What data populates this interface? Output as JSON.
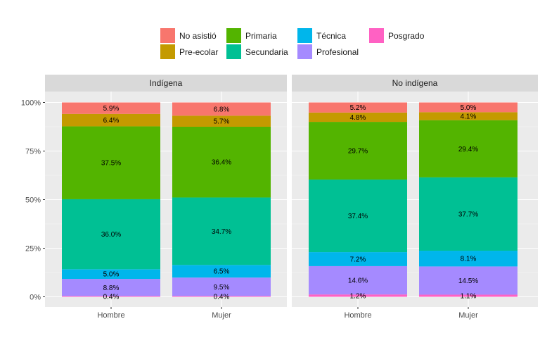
{
  "chart_data": {
    "type": "bar",
    "stacked": true,
    "y_tick_labels": [
      "0%",
      "25%",
      "50%",
      "75%",
      "100%"
    ],
    "ylim": [
      0,
      100
    ],
    "legend_placement": "top",
    "grid": true,
    "legend": [
      {
        "key": "posgrado",
        "label": "Posgrado",
        "color": "#ff61c3"
      },
      {
        "key": "profesional",
        "label": "Profesional",
        "color": "#a58aff"
      },
      {
        "key": "tecnica",
        "label": "Técnica",
        "color": "#00b6eb"
      },
      {
        "key": "secundaria",
        "label": "Secundaria",
        "color": "#00c094"
      },
      {
        "key": "primaria",
        "label": "Primaria",
        "color": "#53b400"
      },
      {
        "key": "preescolar",
        "label": "Pre-ecolar",
        "color": "#c49a00"
      },
      {
        "key": "noasistio",
        "label": "No asistió",
        "color": "#f8766d"
      }
    ],
    "panels": [
      {
        "title": "Indígena",
        "bars": [
          {
            "category": "Hombre",
            "segments": [
              {
                "key": "posgrado",
                "value": 0.4,
                "label": "0.4%"
              },
              {
                "key": "profesional",
                "value": 8.8,
                "label": "8.8%"
              },
              {
                "key": "tecnica",
                "value": 5.0,
                "label": "5.0%"
              },
              {
                "key": "secundaria",
                "value": 36.0,
                "label": "36.0%"
              },
              {
                "key": "primaria",
                "value": 37.5,
                "label": "37.5%"
              },
              {
                "key": "preescolar",
                "value": 6.4,
                "label": "6.4%"
              },
              {
                "key": "noasistio",
                "value": 5.9,
                "label": "5.9%"
              }
            ]
          },
          {
            "category": "Mujer",
            "segments": [
              {
                "key": "posgrado",
                "value": 0.4,
                "label": "0.4%"
              },
              {
                "key": "profesional",
                "value": 9.5,
                "label": "9.5%"
              },
              {
                "key": "tecnica",
                "value": 6.5,
                "label": "6.5%"
              },
              {
                "key": "secundaria",
                "value": 34.7,
                "label": "34.7%"
              },
              {
                "key": "primaria",
                "value": 36.4,
                "label": "36.4%"
              },
              {
                "key": "preescolar",
                "value": 5.7,
                "label": "5.7%"
              },
              {
                "key": "noasistio",
                "value": 6.8,
                "label": "6.8%"
              }
            ]
          }
        ]
      },
      {
        "title": "No indígena",
        "bars": [
          {
            "category": "Hombre",
            "segments": [
              {
                "key": "posgrado",
                "value": 1.2,
                "label": "1.2%"
              },
              {
                "key": "profesional",
                "value": 14.6,
                "label": "14.6%"
              },
              {
                "key": "tecnica",
                "value": 7.2,
                "label": "7.2%"
              },
              {
                "key": "secundaria",
                "value": 37.4,
                "label": "37.4%"
              },
              {
                "key": "primaria",
                "value": 29.7,
                "label": "29.7%"
              },
              {
                "key": "preescolar",
                "value": 4.8,
                "label": "4.8%"
              },
              {
                "key": "noasistio",
                "value": 5.2,
                "label": "5.2%"
              }
            ]
          },
          {
            "category": "Mujer",
            "segments": [
              {
                "key": "posgrado",
                "value": 1.1,
                "label": "1.1%"
              },
              {
                "key": "profesional",
                "value": 14.5,
                "label": "14.5%"
              },
              {
                "key": "tecnica",
                "value": 8.1,
                "label": "8.1%"
              },
              {
                "key": "secundaria",
                "value": 37.7,
                "label": "37.7%"
              },
              {
                "key": "primaria",
                "value": 29.4,
                "label": "29.4%"
              },
              {
                "key": "preescolar",
                "value": 4.1,
                "label": "4.1%"
              },
              {
                "key": "noasistio",
                "value": 5.0,
                "label": "5.0%"
              }
            ]
          }
        ]
      }
    ]
  }
}
